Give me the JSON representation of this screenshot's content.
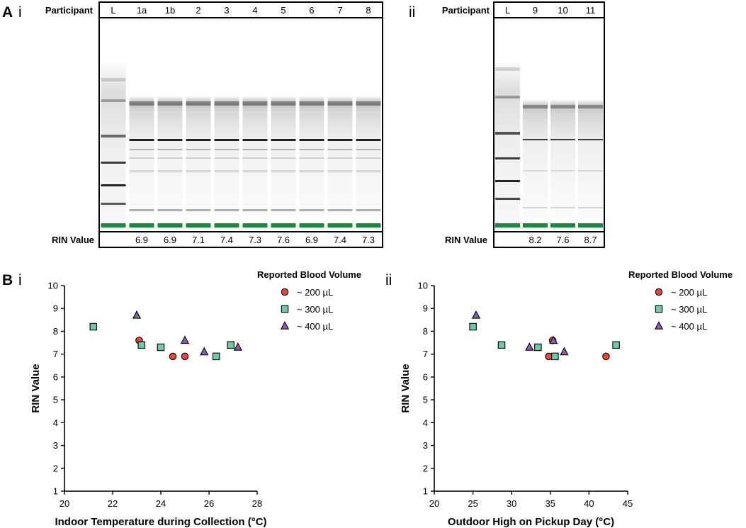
{
  "panel_labels": {
    "A": "A",
    "B": "B",
    "i": "i",
    "ii": "ii"
  },
  "gel_i": {
    "participant_label": "Participant",
    "rin_label": "RIN Value",
    "lanes": [
      "L",
      "1a",
      "1b",
      "2",
      "3",
      "4",
      "5",
      "6",
      "7",
      "8"
    ],
    "rin_values": [
      "",
      "6.9",
      "6.9",
      "7.1",
      "7.4",
      "7.3",
      "7.6",
      "6.9",
      "7.4",
      "7.3"
    ]
  },
  "gel_ii": {
    "participant_label": "Participant",
    "rin_label": "RIN Value",
    "lanes": [
      "L",
      "9",
      "10",
      "11"
    ],
    "rin_values": [
      "",
      "8.2",
      "7.6",
      "8.7"
    ]
  },
  "chart_data": [
    {
      "type": "scatter",
      "title": "",
      "xlabel": "Indoor Temperature during Collection (°C)",
      "ylabel": "RIN Value",
      "xlim": [
        20,
        28
      ],
      "ylim": [
        1,
        10
      ],
      "xticks": [
        20,
        22,
        24,
        26,
        28
      ],
      "yticks": [
        1,
        2,
        3,
        4,
        5,
        6,
        7,
        8,
        9,
        10
      ],
      "legend_title": "Reported Blood Volume",
      "series": [
        {
          "name": "~ 200 µL",
          "marker": "circle",
          "color": "#e8453c",
          "points": [
            {
              "x": 23.1,
              "y": 7.6
            },
            {
              "x": 24.5,
              "y": 6.9
            },
            {
              "x": 25.0,
              "y": 6.9
            }
          ]
        },
        {
          "name": "~ 300 µL",
          "marker": "square",
          "color": "#6ec9a6",
          "points": [
            {
              "x": 21.2,
              "y": 8.2
            },
            {
              "x": 23.2,
              "y": 7.4
            },
            {
              "x": 24.0,
              "y": 7.3
            },
            {
              "x": 26.3,
              "y": 6.9
            },
            {
              "x": 26.9,
              "y": 7.4
            }
          ]
        },
        {
          "name": "~ 400 µL",
          "marker": "triangle",
          "color": "#8b5fb8",
          "points": [
            {
              "x": 23.0,
              "y": 8.7
            },
            {
              "x": 25.0,
              "y": 7.6
            },
            {
              "x": 25.8,
              "y": 7.1
            },
            {
              "x": 27.2,
              "y": 7.3
            }
          ]
        }
      ]
    },
    {
      "type": "scatter",
      "title": "",
      "xlabel": "Outdoor High on Pickup Day (°C)",
      "ylabel": "RIN Value",
      "xlim": [
        20,
        45
      ],
      "ylim": [
        1,
        10
      ],
      "xticks": [
        20,
        25,
        30,
        35,
        40,
        45
      ],
      "yticks": [
        1,
        2,
        3,
        4,
        5,
        6,
        7,
        8,
        9,
        10
      ],
      "legend_title": "Reported Blood Volume",
      "series": [
        {
          "name": "~ 200 µL",
          "marker": "circle",
          "color": "#e8453c",
          "points": [
            {
              "x": 34.8,
              "y": 6.9
            },
            {
              "x": 35.3,
              "y": 7.6
            },
            {
              "x": 42.2,
              "y": 6.9
            }
          ]
        },
        {
          "name": "~ 300 µL",
          "marker": "square",
          "color": "#6ec9a6",
          "points": [
            {
              "x": 25.0,
              "y": 8.2
            },
            {
              "x": 28.7,
              "y": 7.4
            },
            {
              "x": 33.4,
              "y": 7.3
            },
            {
              "x": 35.6,
              "y": 6.9
            },
            {
              "x": 43.5,
              "y": 7.4
            }
          ]
        },
        {
          "name": "~ 400 µL",
          "marker": "triangle",
          "color": "#8b5fb8",
          "points": [
            {
              "x": 25.4,
              "y": 8.7
            },
            {
              "x": 32.3,
              "y": 7.3
            },
            {
              "x": 35.4,
              "y": 7.6
            },
            {
              "x": 36.8,
              "y": 7.1
            }
          ]
        }
      ]
    }
  ]
}
